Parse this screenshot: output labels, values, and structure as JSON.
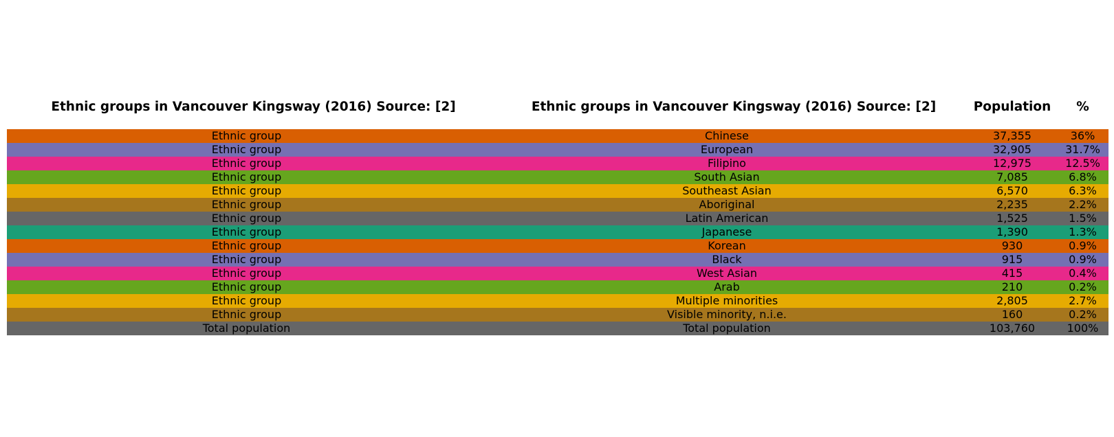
{
  "chart_data": {
    "type": "table",
    "columns": [
      "Ethnic groups in Vancouver Kingsway (2016) Source: [2]",
      "Ethnic groups in Vancouver Kingsway (2016) Source: [2]",
      "Population",
      "%"
    ],
    "rows": [
      [
        "Ethnic group",
        "Chinese",
        "37,355",
        "36%"
      ],
      [
        "Ethnic group",
        "European",
        "32,905",
        "31.7%"
      ],
      [
        "Ethnic group",
        "Filipino",
        "12,975",
        "12.5%"
      ],
      [
        "Ethnic group",
        "South Asian",
        "7,085",
        "6.8%"
      ],
      [
        "Ethnic group",
        "Southeast Asian",
        "6,570",
        "6.3%"
      ],
      [
        "Ethnic group",
        "Aboriginal",
        "2,235",
        "2.2%"
      ],
      [
        "Ethnic group",
        "Latin American",
        "1,525",
        "1.5%"
      ],
      [
        "Ethnic group",
        "Japanese",
        "1,390",
        "1.3%"
      ],
      [
        "Ethnic group",
        "Korean",
        "930",
        "0.9%"
      ],
      [
        "Ethnic group",
        "Black",
        "915",
        "0.9%"
      ],
      [
        "Ethnic group",
        "West Asian",
        "415",
        "0.4%"
      ],
      [
        "Ethnic group",
        "Arab",
        "210",
        "0.2%"
      ],
      [
        "Ethnic group",
        "Multiple minorities",
        "2,805",
        "2.7%"
      ],
      [
        "Ethnic group",
        "Visible minority, n.i.e.",
        "160",
        "0.2%"
      ],
      [
        "Total population",
        "Total population",
        "103,760",
        "100%"
      ]
    ],
    "row_colors": [
      "#d95f02",
      "#7570b3",
      "#e7298a",
      "#66a61e",
      "#e6ab02",
      "#a6761d",
      "#666666",
      "#1b9e77",
      "#d95f02",
      "#7570b3",
      "#e7298a",
      "#66a61e",
      "#e6ab02",
      "#a6761d",
      "#666666"
    ]
  }
}
